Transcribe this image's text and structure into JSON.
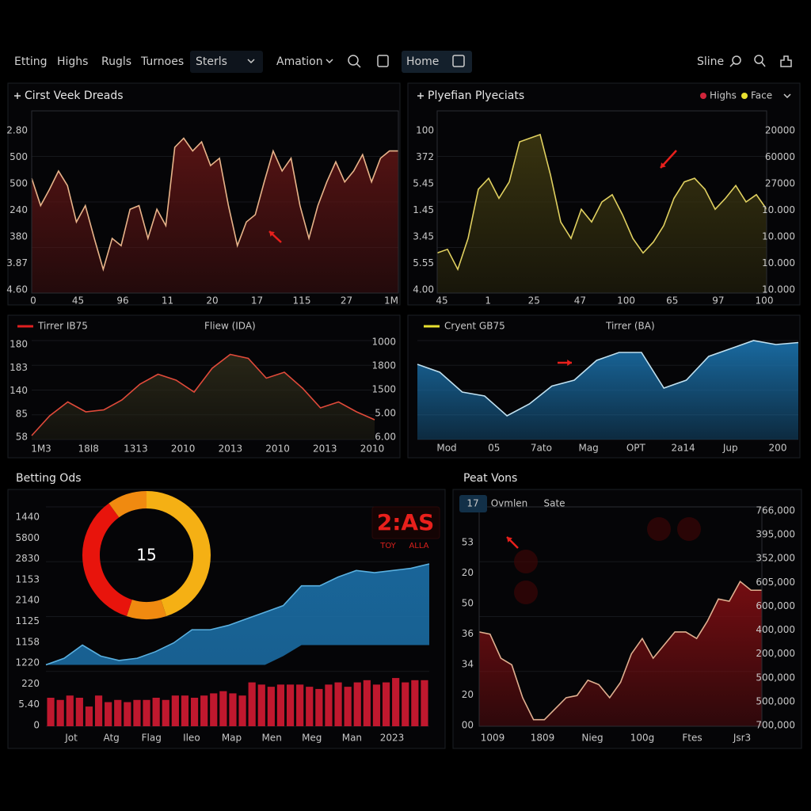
{
  "nav": {
    "links": [
      "Etting",
      "Highs",
      "Rugls",
      "Turnoes"
    ],
    "dropdowns": [
      "Sterls",
      "Amation"
    ],
    "home": "Home",
    "right": "Sline"
  },
  "panels": [
    {
      "title": "Cirst Veek Dreads",
      "y_labels": [
        "2.80",
        "500",
        "500",
        "240",
        "380",
        "3.87",
        "4.60"
      ],
      "x_labels": [
        "0",
        "45",
        "96",
        "11",
        "20",
        "17",
        "115",
        "27",
        "1M"
      ],
      "charts": [
        {
          "type": "area",
          "ylim": [
            0,
            100
          ],
          "color": "#e8b48a",
          "fill": "#5a1414",
          "values": [
            63,
            48,
            57,
            67,
            59,
            39,
            48,
            30,
            13,
            30,
            26,
            46,
            48,
            30,
            46,
            37,
            80,
            85,
            78,
            83,
            70,
            74,
            48,
            26,
            39,
            43,
            61,
            78,
            67,
            74,
            48,
            30,
            48,
            61,
            72,
            61,
            67,
            76,
            61,
            74,
            78,
            78
          ]
        }
      ]
    },
    {
      "title": "Plyefian Plyeciats",
      "legend": [
        {
          "name": "Highs",
          "color": "#d0243a"
        },
        {
          "name": "Face",
          "color": "#e8e030"
        }
      ],
      "y_labels": [
        "100",
        "372",
        "5.45",
        "1.45",
        "3.45",
        "5.55",
        "4.00"
      ],
      "y2_labels": [
        "20000",
        "60000",
        "27000",
        "10.000",
        "10.000",
        "10.000",
        "10.000"
      ],
      "x_labels": [
        "45",
        "1",
        "25",
        "47",
        "100",
        "65",
        "97",
        "100"
      ],
      "charts": [
        {
          "type": "area",
          "ylim": [
            0,
            100
          ],
          "color": "#e0d060",
          "fill": "#3a3510",
          "values": [
            22,
            24,
            13,
            30,
            57,
            63,
            52,
            61,
            83,
            85,
            87,
            65,
            39,
            30,
            46,
            39,
            50,
            54,
            43,
            30,
            22,
            28,
            37,
            52,
            61,
            63,
            57,
            46,
            52,
            59,
            50,
            54,
            46
          ]
        }
      ]
    },
    {
      "legend": [
        {
          "name": "Tirrer IB75",
          "color": "#e02020"
        },
        {
          "name": "Fliew (IDA)"
        }
      ],
      "y_labels": [
        "180",
        "183",
        "140",
        "85",
        "58"
      ],
      "y2_labels": [
        "1000",
        "1800",
        "1500",
        "5.00",
        "6.00"
      ],
      "x_labels": [
        "1M3",
        "18I8",
        "1313",
        "2010",
        "2013",
        "2010",
        "2013",
        "2010"
      ],
      "charts": [
        {
          "type": "area",
          "ylim": [
            0,
            100
          ],
          "color": "#e04a3a",
          "fill": "#2a2818",
          "values": [
            4,
            24,
            38,
            28,
            30,
            40,
            56,
            66,
            60,
            48,
            72,
            86,
            82,
            62,
            68,
            52,
            32,
            38,
            28,
            20
          ]
        }
      ]
    },
    {
      "legend": [
        {
          "name": "Cryent GB75",
          "color": "#e8e030"
        },
        {
          "name": "Tirrer (BA)"
        }
      ],
      "x_labels": [
        "Mod",
        "05",
        "7ato",
        "Mag",
        "OPT",
        "2a14",
        "Jup",
        "200"
      ],
      "charts": [
        {
          "type": "area",
          "ylim": [
            0,
            100
          ],
          "color": "#bfe0f0",
          "fill": "#1a6fa8",
          "values": [
            76,
            68,
            48,
            44,
            24,
            36,
            54,
            60,
            80,
            88,
            88,
            52,
            60,
            84,
            92,
            100,
            96,
            98
          ]
        }
      ]
    },
    {
      "title": "Betting Ods",
      "y_labels": [
        "1440",
        "5800",
        "2830",
        "1153",
        "2140",
        "1125",
        "1158",
        "1220",
        "220",
        "5.40",
        "0"
      ],
      "x_labels": [
        "Jot",
        "Atg",
        "Flag",
        "Ileo",
        "Map",
        "Men",
        "Meg",
        "Man",
        "2023"
      ],
      "badge": "2:AS",
      "badge_sub": [
        "TOY",
        "ALLA"
      ],
      "donut": {
        "center": "15",
        "values": [
          45,
          10,
          35,
          10
        ],
        "colors": [
          "#f5b014",
          "#f08a10",
          "#e8140c",
          "#f08a10"
        ]
      },
      "charts": [
        {
          "type": "area",
          "ylim": [
            0,
            100
          ],
          "color": "#5ab0e0",
          "fill": "#1a6aa0",
          "values": [
            28,
            31,
            37,
            32,
            30,
            31,
            34,
            38,
            44,
            44,
            46,
            49,
            52,
            55,
            64,
            64,
            68,
            71,
            70,
            71,
            72,
            74
          ],
          "lower": [
            28,
            28,
            28,
            28,
            28,
            28,
            28,
            28,
            28,
            28,
            28,
            28,
            28,
            32,
            37,
            37,
            37,
            37,
            37,
            37,
            37,
            37
          ]
        },
        {
          "type": "bar",
          "ylim": [
            0,
            100
          ],
          "color": "#c0182e",
          "values": [
            13,
            12,
            14,
            13,
            9,
            14,
            11,
            12,
            11,
            12,
            12,
            13,
            12,
            14,
            14,
            13,
            14,
            15,
            16,
            15,
            14,
            20,
            19,
            18,
            19,
            19,
            19,
            18,
            17,
            19,
            20,
            18,
            20,
            21,
            19,
            20,
            22,
            20,
            21,
            21
          ]
        }
      ]
    },
    {
      "title": "Peat Vons",
      "tabs": [
        "17",
        "Ovmlen",
        "Sate"
      ],
      "y_labels": [
        "53",
        "20",
        "50",
        "36",
        "34",
        "20",
        "00"
      ],
      "y2_labels": [
        "766,000",
        "395,000",
        "352,000",
        "605,000",
        "600,000",
        "400,000",
        "200,000",
        "500,000",
        "500,000",
        "700,000"
      ],
      "x_labels": [
        "1009",
        "1809",
        "Nieg",
        "100g",
        "Ftes",
        "Jsr3"
      ],
      "charts": [
        {
          "type": "area",
          "ylim": [
            0,
            100
          ],
          "color": "#e0b090",
          "fill": "#7a0e12",
          "values": [
            43,
            42,
            31,
            28,
            13,
            3,
            3,
            8,
            13,
            14,
            21,
            19,
            13,
            20,
            33,
            40,
            31,
            37,
            43,
            43,
            40,
            48,
            58,
            57,
            66,
            62,
            62
          ]
        }
      ]
    }
  ]
}
